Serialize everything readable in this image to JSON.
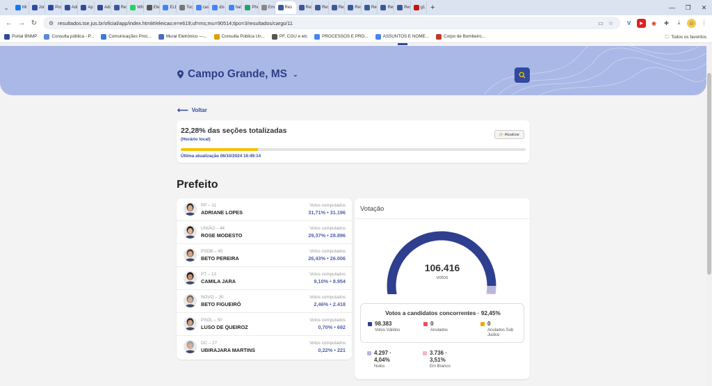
{
  "browser": {
    "tabs": [
      {
        "label": "Mi",
        "color": "#1877f2"
      },
      {
        "label": "Jor",
        "color": "#2f4a9e"
      },
      {
        "label": "Pos",
        "color": "#2f4a9e"
      },
      {
        "label": "Adi",
        "color": "#2f4a9e"
      },
      {
        "label": "Ap",
        "color": "#2f4a9e"
      },
      {
        "label": "Adi",
        "color": "#2f4a9e"
      },
      {
        "label": "Res",
        "color": "#3b5998"
      },
      {
        "label": "Wh",
        "color": "#25d366"
      },
      {
        "label": "Ele",
        "color": "#555555"
      },
      {
        "label": "ELE",
        "color": "#4285f4"
      },
      {
        "label": "Toc",
        "color": "#777777"
      },
      {
        "label": "cas",
        "color": "#4285f4"
      },
      {
        "label": "dis",
        "color": "#4285f4"
      },
      {
        "label": "hal",
        "color": "#4285f4"
      },
      {
        "label": "Pho",
        "color": "#25a36a"
      },
      {
        "label": "Em",
        "color": "#888888"
      },
      {
        "label": "Res",
        "color": "#3b5998"
      },
      {
        "label": "Res",
        "color": "#3b5998"
      },
      {
        "label": "Res",
        "color": "#3b5998"
      },
      {
        "label": "Res",
        "color": "#3b5998"
      },
      {
        "label": "Res",
        "color": "#3b5998"
      },
      {
        "label": "Res",
        "color": "#3b5998"
      },
      {
        "label": "Res",
        "color": "#3b5998"
      },
      {
        "label": "Res",
        "color": "#3b5998"
      },
      {
        "label": "g1",
        "color": "#c4170c"
      }
    ],
    "active_tab_index": 16,
    "url": "resultados.tse.jus.br/oficial/app/index.html#/eleicao;e=e619;uf=ms;mu=90514;tipo=3/resultados/cargo/11",
    "bookmarks": [
      {
        "label": "Portal BNMP",
        "color": "#2f4a9e"
      },
      {
        "label": "Consulta pública - P...",
        "color": "#5b8ad6"
      },
      {
        "label": "Comunicações Proc...",
        "color": "#3b7ad6"
      },
      {
        "label": "Mural Eletrônico —...",
        "color": "#4a6bbf"
      },
      {
        "label": "Consulta Pública Un...",
        "color": "#e0a000"
      },
      {
        "label": "PF, CGU e etc",
        "color": "#555555"
      },
      {
        "label": "PROCESSOS E PRO...",
        "color": "#4285f4"
      },
      {
        "label": "ASSUNTOS E NOME...",
        "color": "#4285f4"
      },
      {
        "label": "Corpo de Bombeiro...",
        "color": "#c0392b"
      }
    ],
    "all_bookmarks_label": "Todos os favoritos"
  },
  "header": {
    "city": "Campo Grande, MS"
  },
  "back_label": "Voltar",
  "status": {
    "title": "22,28% das seções totalizadas",
    "subtitle": "(Horário local)",
    "refresh_label": "Atualizar",
    "progress_fraction": 0.2228,
    "last_update": "Última atualização 06/10/2024 16:49:14"
  },
  "section_title": "Prefeito",
  "candidates_votes_label": "Votos computados",
  "candidates": [
    {
      "party": "PP – 11",
      "name": "ADRIANE LOPES",
      "percent": "31,71%",
      "votes": "31.196",
      "skin": "#d9a98a",
      "hair": "#3a2a22"
    },
    {
      "party": "UNIÃO – 44",
      "name": "ROSE MODESTO",
      "percent": "29,37%",
      "votes": "28.896",
      "skin": "#e0b394",
      "hair": "#2a1c16"
    },
    {
      "party": "PSDB – 45",
      "name": "BETO PEREIRA",
      "percent": "26,43%",
      "votes": "26.006",
      "skin": "#d6a383",
      "hair": "#4a3a30"
    },
    {
      "party": "PT – 13",
      "name": "CAMILA JARA",
      "percent": "9,10%",
      "votes": "8.954",
      "skin": "#c48e70",
      "hair": "#1e1410"
    },
    {
      "party": "NOVO – 30",
      "name": "BETO FIGUEIRÓ",
      "percent": "2,46%",
      "votes": "2.418",
      "skin": "#d8a98d",
      "hair": "#6b6b6b"
    },
    {
      "party": "PSOL – 50",
      "name": "LUSO DE QUEIROZ",
      "percent": "0,70%",
      "votes": "692",
      "skin": "#cf9e80",
      "hair": "#2c2c2c"
    },
    {
      "party": "DC – 27",
      "name": "UBIRAJARA MARTINS",
      "percent": "0,22%",
      "votes": "221",
      "skin": "#d9ad93",
      "hair": "#9a9a9a"
    }
  ],
  "voting": {
    "title": "Votação",
    "total": "106.416",
    "unit": "votos",
    "gauge": {
      "valid_fraction": 0.9245,
      "null_fraction": 0.0404,
      "blank_fraction": 0.0351,
      "colors": {
        "valid": "#2f3f8f",
        "null": "#b8b6dc",
        "blank": "#f4b6bd"
      }
    },
    "concurrent_title": "Votos a candidatos concorrentes · 92,45%",
    "stats": [
      {
        "value": "98.383",
        "label": "Votos Válidos",
        "color": "#2f3f8f"
      },
      {
        "value": "0",
        "label": "Anulados",
        "color": "#e8505b"
      },
      {
        "value": "0",
        "label": "Anulados Sub Judice",
        "color": "#f2a900"
      }
    ],
    "stats2": [
      {
        "value": "4.297 · 4,04%",
        "label": "Nulos",
        "color": "#b8b6dc"
      },
      {
        "value": "3.736 · 3,51%",
        "label": "Em Branco",
        "color": "#f4b6bd"
      }
    ]
  }
}
